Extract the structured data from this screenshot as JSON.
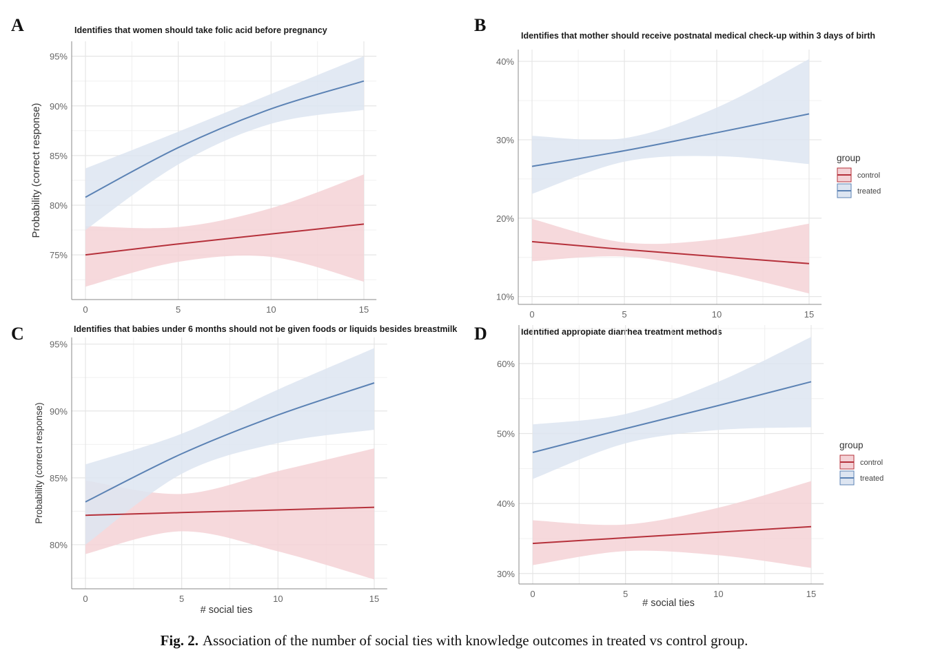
{
  "figure": {
    "caption_label": "Fig. 2.",
    "caption_text": "Association of the number of social ties with knowledge outcomes in treated vs control group."
  },
  "colors": {
    "treated": "#5b82b4",
    "treated_band": "#dde5f1",
    "control": "#b5303a",
    "control_band": "#f4d2d6",
    "grid": "#e5e5e5",
    "axis": "#888888",
    "tick_text": "#666666"
  },
  "legend": {
    "title": "group",
    "items": [
      "control",
      "treated"
    ]
  },
  "chart_data": [
    {
      "panel": "A",
      "type": "line",
      "title": "Identifies that women should take folic acid before pregnancy",
      "xlabel": "",
      "ylabel": "Probability (correct response)",
      "x": [
        0,
        5,
        10,
        15
      ],
      "xlim": [
        -0.7,
        15.7
      ],
      "ylim": [
        70.5,
        96.5
      ],
      "yticks": [
        75,
        80,
        85,
        90,
        95
      ],
      "ytick_labels": [
        "75%",
        "80%",
        "85%",
        "90%",
        "95%"
      ],
      "xticks": [
        0,
        5,
        10,
        15
      ],
      "legend": false,
      "series": [
        {
          "name": "control",
          "values": [
            75.0,
            76.1,
            77.1,
            78.1
          ],
          "lower": [
            71.8,
            74.3,
            74.8,
            72.3
          ],
          "upper": [
            77.9,
            77.8,
            79.7,
            83.1
          ]
        },
        {
          "name": "treated",
          "values": [
            80.8,
            85.8,
            89.7,
            92.5
          ],
          "lower": [
            77.5,
            84.1,
            88.2,
            89.6
          ],
          "upper": [
            83.7,
            87.4,
            91.2,
            95.0
          ]
        }
      ]
    },
    {
      "panel": "B",
      "type": "line",
      "title": "Identifies that mother should receive postnatal medical check-up within 3 days of birth",
      "xlabel": "",
      "ylabel": "",
      "x": [
        0,
        5,
        10,
        15
      ],
      "xlim": [
        -0.7,
        15.7
      ],
      "ylim": [
        9.0,
        41.5
      ],
      "yticks": [
        10,
        20,
        30,
        40
      ],
      "ytick_labels": [
        "10%",
        "20%",
        "30%",
        "40%"
      ],
      "xticks": [
        0,
        5,
        10,
        15
      ],
      "legend": true,
      "series": [
        {
          "name": "control",
          "values": [
            17.0,
            16.0,
            15.1,
            14.2
          ],
          "lower": [
            14.5,
            15.1,
            13.2,
            10.4
          ],
          "upper": [
            19.9,
            16.9,
            17.3,
            19.3
          ]
        },
        {
          "name": "treated",
          "values": [
            26.6,
            28.6,
            30.9,
            33.3
          ],
          "lower": [
            23.1,
            27.2,
            27.9,
            26.9
          ],
          "upper": [
            30.5,
            30.2,
            34.1,
            40.3
          ]
        }
      ]
    },
    {
      "panel": "C",
      "type": "line",
      "title": "Identifies that babies under 6 months should not be given foods or liquids besides breastmilk",
      "xlabel": "# social ties",
      "ylabel": "Probability (correct response)",
      "x": [
        0,
        5,
        10,
        15
      ],
      "xlim": [
        -0.7,
        15.7
      ],
      "ylim": [
        76.7,
        95.5
      ],
      "yticks": [
        80,
        85,
        90,
        95
      ],
      "ytick_labels": [
        "80%",
        "85%",
        "90%",
        "95%"
      ],
      "xticks": [
        0,
        5,
        10,
        15
      ],
      "legend": false,
      "series": [
        {
          "name": "control",
          "values": [
            82.2,
            82.4,
            82.6,
            82.8
          ],
          "lower": [
            79.3,
            81.0,
            79.5,
            77.4
          ],
          "upper": [
            84.8,
            83.8,
            85.5,
            87.2
          ]
        },
        {
          "name": "treated",
          "values": [
            83.2,
            86.8,
            89.7,
            92.1
          ],
          "lower": [
            80.0,
            85.3,
            87.6,
            88.6
          ],
          "upper": [
            86.0,
            88.3,
            91.6,
            94.7
          ]
        }
      ]
    },
    {
      "panel": "D",
      "type": "line",
      "title": "Identified appropiate diarrhea treatment methods",
      "xlabel": "# social ties",
      "ylabel": "",
      "x": [
        0,
        5,
        10,
        15
      ],
      "xlim": [
        -0.7,
        15.7
      ],
      "ylim": [
        28.5,
        65.5
      ],
      "yticks": [
        30,
        40,
        50,
        60
      ],
      "ytick_labels": [
        "30%",
        "40%",
        "50%",
        "60%"
      ],
      "xticks": [
        0,
        5,
        10,
        15
      ],
      "legend": true,
      "series": [
        {
          "name": "control",
          "values": [
            34.3,
            35.1,
            35.9,
            36.7
          ],
          "lower": [
            31.2,
            33.2,
            32.6,
            30.8
          ],
          "upper": [
            37.6,
            37.0,
            39.4,
            43.2
          ]
        },
        {
          "name": "treated",
          "values": [
            47.3,
            50.7,
            54.0,
            57.4
          ],
          "lower": [
            43.5,
            48.6,
            50.5,
            50.9
          ],
          "upper": [
            51.3,
            52.8,
            57.4,
            63.8
          ]
        }
      ]
    }
  ]
}
